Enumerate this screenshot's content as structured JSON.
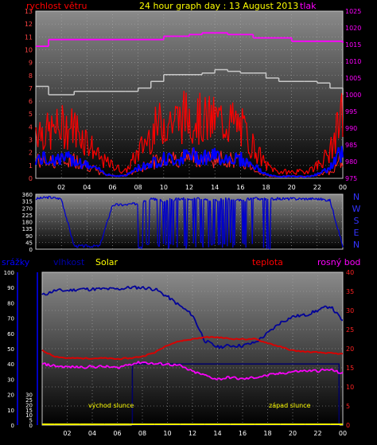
{
  "charts": {
    "top": {
      "left_label": "rychlost větru",
      "title": "24 hour graph day : 13 August 2013",
      "right_label": "tlak",
      "left_ticks": [
        "0",
        "1",
        "2",
        "3",
        "4",
        "5",
        "6",
        "7",
        "8",
        "9",
        "10",
        "11",
        "12",
        "13"
      ],
      "right_ticks": [
        "975",
        "980",
        "985",
        "990",
        "995",
        "1000",
        "1005",
        "1010",
        "1015",
        "1020",
        "1025"
      ]
    },
    "mid": {
      "left_ticks": [
        "0",
        "45",
        "90",
        "135",
        "180",
        "225",
        "270",
        "315",
        "360"
      ],
      "compass": [
        "N",
        "W",
        "S",
        "E",
        "N"
      ]
    },
    "bottom": {
      "labels": {
        "rain": "srážky",
        "humidity": "vlhkost",
        "solar": "Solar",
        "temp": "teplota",
        "dew": "rosný bod"
      },
      "left1_ticks": [
        "0",
        "10",
        "20",
        "30",
        "40",
        "50",
        "60",
        "70",
        "80",
        "90",
        "100"
      ],
      "left2_ticks": [
        "0",
        "5",
        "10",
        "15",
        "20",
        "25",
        "30"
      ],
      "right_ticks": [
        "0",
        "5",
        "10",
        "15",
        "20",
        "25",
        "30",
        "35",
        "40"
      ],
      "sunrise": "východ slunce",
      "sunset": "západ slunce"
    },
    "x_ticks": [
      "02",
      "04",
      "06",
      "08",
      "10",
      "12",
      "14",
      "16",
      "18",
      "20",
      "22",
      "00"
    ]
  },
  "colors": {
    "wind": "#ff0000",
    "gust": "#cc0000",
    "wind_avg": "#0000ff",
    "pressure": "#ff00ff",
    "outline": "#c8c8c8",
    "direction": "#0000cc",
    "humidity": "#000099",
    "temp": "#dd0000",
    "dew": "#ff00ff",
    "solar": "#ffff00",
    "daylight": "#000066",
    "title": "#ffff00"
  },
  "chart_data": [
    {
      "type": "line",
      "title": "24 hour graph day : 13 August 2013",
      "ylabel": "rychlost větru",
      "y2label": "tlak",
      "ylim": [
        0,
        13
      ],
      "y2lim": [
        975,
        1025
      ],
      "x": [
        0,
        1,
        2,
        3,
        4,
        5,
        6,
        7,
        8,
        9,
        10,
        11,
        12,
        13,
        14,
        15,
        16,
        17,
        18,
        19,
        20,
        21,
        22,
        23,
        24
      ],
      "series": [
        {
          "name": "rychlost větru",
          "axis": "left",
          "values": [
            3.5,
            3,
            3.2,
            3.5,
            2.5,
            1,
            0.5,
            0.5,
            1.5,
            3,
            3.5,
            3.8,
            4,
            3.8,
            3.6,
            3.5,
            3.2,
            2,
            0.5,
            0.3,
            0.5,
            0.3,
            0.5,
            1.2,
            4
          ]
        },
        {
          "axis": "left",
          "values": [
            4,
            3.5,
            4,
            4,
            3,
            1.5,
            1,
            0.5,
            2,
            3.5,
            4.5,
            4.5,
            5,
            4.5,
            4.5,
            4.5,
            4,
            2.5,
            1,
            0.5,
            0.5,
            0.5,
            1,
            2,
            5
          ]
        },
        {
          "axis": "left",
          "values": [
            1.5,
            1.5,
            1.5,
            1.5,
            1,
            0.6,
            0.2,
            0.2,
            0.8,
            1.2,
            1.5,
            1.5,
            1.8,
            1.7,
            1.7,
            1.6,
            1.5,
            1,
            0.3,
            0.1,
            0.2,
            0.1,
            0.3,
            0.8,
            2.2
          ]
        },
        {
          "name": "tlak",
          "axis": "right",
          "values": [
            1014.5,
            1016.5,
            1016.5,
            1016.5,
            1016.5,
            1016.5,
            1016.5,
            1016.5,
            1016.5,
            1016.5,
            1017.5,
            1017.5,
            1018,
            1018.5,
            1018.5,
            1018,
            1018,
            1017,
            1017,
            1017,
            1016,
            1016,
            1016,
            1016,
            1015.5
          ]
        },
        {
          "axis": "right",
          "values": [
            1002.5,
            1000,
            1000,
            1001,
            1001,
            1001,
            1001,
            1001,
            1002,
            1004,
            1006,
            1006,
            1006,
            1006.5,
            1007.5,
            1007,
            1006.5,
            1006.5,
            1005,
            1004,
            1004,
            1004,
            1003.5,
            1002,
            1000
          ]
        }
      ]
    },
    {
      "type": "line",
      "ylim": [
        0,
        360
      ],
      "x": [
        0,
        1,
        2,
        3,
        4,
        5,
        6,
        7,
        8,
        9,
        10,
        11,
        12,
        13,
        14,
        15,
        16,
        17,
        18,
        19,
        20,
        21,
        22,
        23,
        24
      ],
      "series": [
        {
          "values": [
            330,
            340,
            330,
            20,
            20,
            20,
            290,
            290,
            300,
            330,
            320,
            330,
            330,
            330,
            320,
            330,
            320,
            330,
            330,
            330,
            330,
            330,
            330,
            320,
            20
          ]
        }
      ]
    },
    {
      "type": "line",
      "ylabel": "vlhkost",
      "y2label": "teplota",
      "ylim": [
        0,
        100
      ],
      "y2lim": [
        0,
        40
      ],
      "x": [
        0,
        1,
        2,
        3,
        4,
        5,
        6,
        7,
        8,
        9,
        10,
        11,
        12,
        13,
        14,
        15,
        16,
        17,
        18,
        19,
        20,
        21,
        22,
        23,
        24
      ],
      "series": [
        {
          "name": "vlhkost",
          "axis": "left",
          "values": [
            85,
            88,
            88,
            89,
            89,
            89,
            89,
            90,
            90,
            89,
            84,
            78,
            72,
            55,
            51,
            52,
            52,
            54,
            60,
            67,
            71,
            72,
            75,
            78,
            68
          ]
        },
        {
          "name": "teplota",
          "axis": "right",
          "values": [
            19.5,
            18,
            17.5,
            17.5,
            17.5,
            17.5,
            17.3,
            17.5,
            18,
            19,
            21,
            22,
            22.5,
            23,
            23,
            22.6,
            22.5,
            22.5,
            21.5,
            20.5,
            19.5,
            19.2,
            19,
            18.8,
            18.6
          ]
        },
        {
          "name": "rosný bod",
          "axis": "right",
          "values": [
            16,
            15.5,
            15.2,
            15.2,
            15.3,
            15.3,
            15,
            16,
            16.5,
            16,
            16,
            15.5,
            14,
            13,
            12,
            12.5,
            12,
            12.5,
            13,
            13.5,
            14,
            14.2,
            14.2,
            14.5,
            13.5
          ]
        },
        {
          "name": "Solar",
          "axis": "left",
          "values": [
            0,
            0,
            0,
            0,
            0,
            0,
            0,
            0,
            0,
            0,
            0,
            0,
            0,
            0,
            0,
            0,
            0,
            0,
            0,
            0,
            0,
            0,
            0,
            0,
            0
          ]
        }
      ],
      "annotations": [
        "východ slunce",
        "západ slunce"
      ],
      "daylight_hours": [
        7.2,
        23.7
      ]
    }
  ]
}
